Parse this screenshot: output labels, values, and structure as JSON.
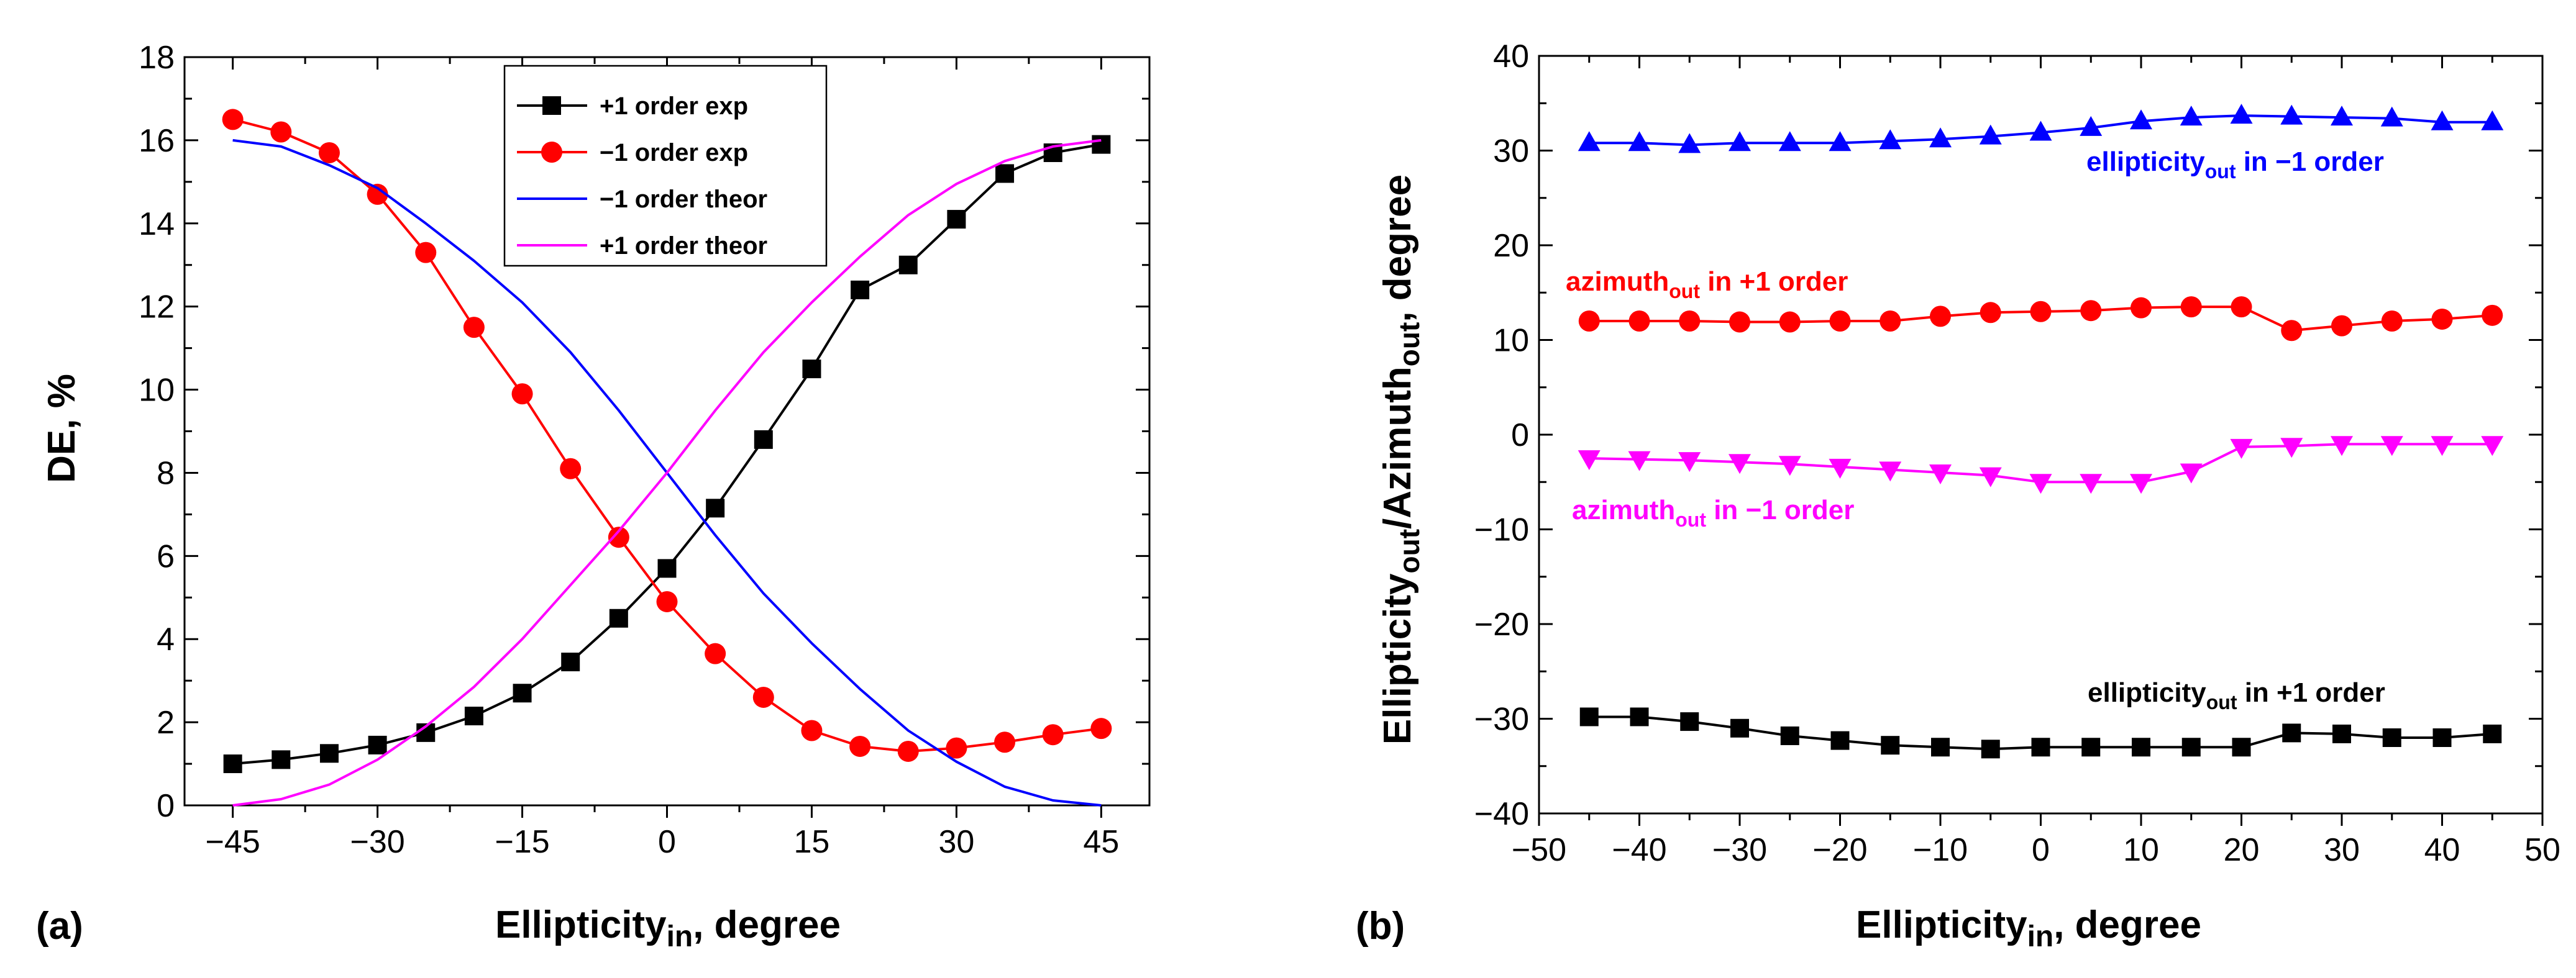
{
  "chart_data": [
    {
      "type": "line",
      "panel_label": "(a)",
      "ylabel": "DE, %",
      "xlabel_main": "Ellipticity",
      "xlabel_sub": "in",
      "xlabel_tail": ", degree",
      "xlim": [
        -50,
        50
      ],
      "ylim": [
        0,
        18
      ],
      "xticks": [
        -45,
        -30,
        -15,
        0,
        15,
        30,
        45
      ],
      "yticks": [
        0,
        2,
        4,
        6,
        8,
        10,
        12,
        14,
        16,
        18
      ],
      "series": [
        {
          "name": "+1 order exp",
          "color": "#000000",
          "marker": "square",
          "x": [
            -45,
            -40,
            -35,
            -30,
            -25,
            -20,
            -15,
            -10,
            -5,
            0,
            5,
            10,
            15,
            20,
            25,
            30,
            35,
            40,
            45
          ],
          "y": [
            1.0,
            1.1,
            1.25,
            1.45,
            1.75,
            2.15,
            2.7,
            3.45,
            4.5,
            5.7,
            7.15,
            8.8,
            10.5,
            12.4,
            13.0,
            14.1,
            15.2,
            15.7,
            15.9
          ]
        },
        {
          "name": "−1 order exp",
          "color": "#ff0000",
          "marker": "circle",
          "x": [
            -45,
            -40,
            -35,
            -30,
            -25,
            -20,
            -15,
            -10,
            -5,
            0,
            5,
            10,
            15,
            20,
            25,
            30,
            35,
            40,
            45
          ],
          "y": [
            16.5,
            16.2,
            15.7,
            14.7,
            13.3,
            11.5,
            9.9,
            8.1,
            6.45,
            4.9,
            3.65,
            2.6,
            1.8,
            1.42,
            1.3,
            1.38,
            1.52,
            1.7,
            1.85
          ]
        },
        {
          "name": "−1 order theor",
          "color": "#0000ff",
          "marker": "none",
          "x": [
            -45,
            -40,
            -35,
            -30,
            -25,
            -20,
            -15,
            -10,
            -5,
            0,
            5,
            10,
            15,
            20,
            25,
            30,
            35,
            40,
            45
          ],
          "y": [
            16.0,
            15.85,
            15.4,
            14.85,
            14.0,
            13.1,
            12.1,
            10.9,
            9.5,
            8.0,
            6.5,
            5.1,
            3.9,
            2.8,
            1.8,
            1.05,
            0.45,
            0.12,
            0.0
          ]
        },
        {
          "name": "+1 order theor",
          "color": "#ff00ff",
          "marker": "none",
          "x": [
            -45,
            -40,
            -35,
            -30,
            -25,
            -20,
            -15,
            -10,
            -5,
            0,
            5,
            10,
            15,
            20,
            25,
            30,
            35,
            40,
            45
          ],
          "y": [
            0.0,
            0.15,
            0.5,
            1.1,
            1.9,
            2.85,
            4.0,
            5.3,
            6.6,
            8.0,
            9.5,
            10.9,
            12.1,
            13.2,
            14.2,
            14.95,
            15.5,
            15.85,
            16.0
          ]
        }
      ],
      "legend": {
        "placement": "top-center",
        "items": [
          {
            "label": "+1 order exp",
            "color": "#000000",
            "text_color": "#000000",
            "marker": "square"
          },
          {
            "label": "−1 order exp",
            "color": "#ff0000",
            "text_color": "#000000",
            "marker": "circle"
          },
          {
            "label": "−1 order theor",
            "color": "#0000ff",
            "text_color": "#ff0000",
            "marker": "none"
          },
          {
            "label": "+1 order theor",
            "color": "#ff00ff",
            "text_color": "#ff0000",
            "marker": "none"
          }
        ]
      }
    },
    {
      "type": "line",
      "panel_label": "(b)",
      "ylabel_parts": [
        "Ellipticity",
        "out",
        "/Azimuth",
        "out",
        ", degree"
      ],
      "xlabel_main": "Ellipticity",
      "xlabel_sub": "in",
      "xlabel_tail": ", degree",
      "xlim": [
        -50,
        50
      ],
      "ylim": [
        -40,
        40
      ],
      "xticks": [
        -50,
        -40,
        -30,
        -20,
        -10,
        0,
        10,
        20,
        30,
        40,
        50
      ],
      "yticks": [
        -40,
        -30,
        -20,
        -10,
        0,
        10,
        20,
        30,
        40
      ],
      "series": [
        {
          "name": "ellipticity out in −1 order",
          "color": "#0000ff",
          "marker": "triangle-up",
          "x": [
            -45,
            -40,
            -35,
            -30,
            -25,
            -20,
            -15,
            -10,
            -5,
            0,
            5,
            10,
            15,
            20,
            25,
            30,
            35,
            40,
            45
          ],
          "y": [
            30.8,
            30.8,
            30.6,
            30.8,
            30.8,
            30.8,
            31.0,
            31.2,
            31.5,
            31.9,
            32.4,
            33.1,
            33.5,
            33.7,
            33.6,
            33.5,
            33.4,
            33.0,
            33.0
          ]
        },
        {
          "name": "azimuth out in +1 order",
          "color": "#ff0000",
          "marker": "circle",
          "x": [
            -45,
            -40,
            -35,
            -30,
            -25,
            -20,
            -15,
            -10,
            -5,
            0,
            5,
            10,
            15,
            20,
            25,
            30,
            35,
            40,
            45
          ],
          "y": [
            12.0,
            12.0,
            12.0,
            11.9,
            11.9,
            12.0,
            12.0,
            12.5,
            12.9,
            13.0,
            13.1,
            13.4,
            13.5,
            13.5,
            11.0,
            11.5,
            12.0,
            12.2,
            12.6
          ]
        },
        {
          "name": "azimuth out in −1 order",
          "color": "#ff00ff",
          "marker": "triangle-down",
          "x": [
            -45,
            -40,
            -35,
            -30,
            -25,
            -20,
            -15,
            -10,
            -5,
            0,
            5,
            10,
            15,
            20,
            25,
            30,
            35,
            40,
            45
          ],
          "y": [
            -2.5,
            -2.6,
            -2.7,
            -2.9,
            -3.1,
            -3.4,
            -3.7,
            -4.0,
            -4.3,
            -5.0,
            -5.0,
            -5.0,
            -3.9,
            -1.3,
            -1.2,
            -1.0,
            -1.0,
            -1.0,
            -1.0
          ]
        },
        {
          "name": "ellipticity out in +1 order",
          "color": "#000000",
          "marker": "square",
          "x": [
            -45,
            -40,
            -35,
            -30,
            -25,
            -20,
            -15,
            -10,
            -5,
            0,
            5,
            10,
            15,
            20,
            25,
            30,
            35,
            40,
            45
          ],
          "y": [
            -29.8,
            -29.8,
            -30.3,
            -31.0,
            -31.8,
            -32.3,
            -32.8,
            -33.0,
            -33.2,
            -33.0,
            -33.0,
            -33.0,
            -33.0,
            -33.0,
            -31.5,
            -31.6,
            -32.0,
            -32.0,
            -31.6
          ]
        }
      ],
      "annotations": [
        {
          "main": "ellipticity",
          "sub": "out",
          "tail": " in −1 order",
          "color": "#0000ff"
        },
        {
          "main": "azimuth",
          "sub": "out",
          "tail": " in +1 order",
          "color": "#ff0000"
        },
        {
          "main": "azimuth",
          "sub": "out",
          "tail": " in −1 order",
          "color": "#ff00ff"
        },
        {
          "main": "ellipticity",
          "sub": "out",
          "tail": " in +1 order",
          "color": "#000000"
        }
      ]
    }
  ]
}
